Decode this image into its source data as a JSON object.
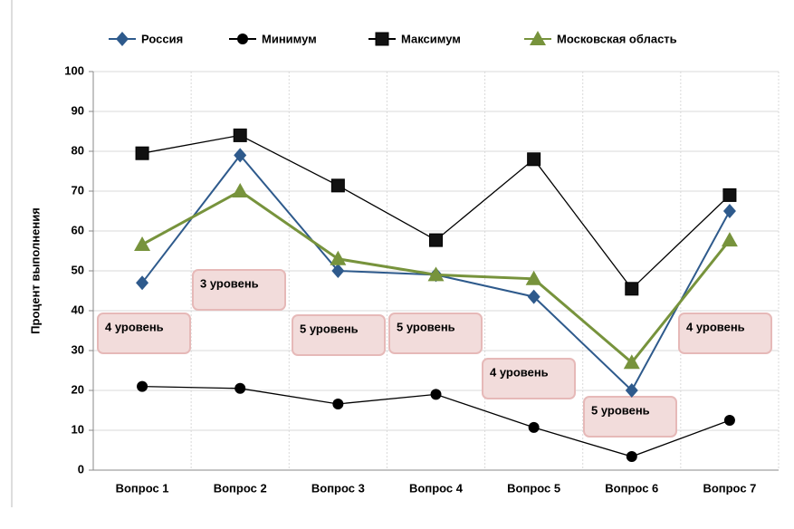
{
  "chart_data": {
    "type": "line",
    "y_label": "Процент выполнения",
    "categories": [
      "Вопрос 1",
      "Вопрос 2",
      "Вопрос 3",
      "Вопрос 4",
      "Вопрос 5",
      "Вопрос 6",
      "Вопрос 7"
    ],
    "series": [
      {
        "name": "Россия",
        "color": "#2e5a8c",
        "marker": "diamond",
        "values": [
          47,
          79,
          50,
          49,
          43.5,
          20,
          65
        ]
      },
      {
        "name": "Минимум",
        "color": "#000000",
        "marker": "circle",
        "values": [
          21,
          20.5,
          16.6,
          19,
          10.7,
          3.4,
          12.5
        ]
      },
      {
        "name": "Максимум",
        "color": "#000000",
        "marker": "square",
        "values": [
          79.5,
          84,
          71.4,
          57.7,
          78,
          45.5,
          69
        ]
      },
      {
        "name": "Московская область",
        "color": "#77933c",
        "marker": "triangle",
        "values": [
          56.6,
          70,
          53,
          49,
          48,
          27,
          57.7
        ]
      }
    ],
    "annotations": [
      "4 уровень",
      "3 уровень",
      "5 уровень",
      "5 уровень",
      "4 уровень",
      "5 уровень",
      "4 уровень"
    ],
    "ylim": [
      0,
      100
    ],
    "yticks": [
      0,
      10,
      20,
      30,
      40,
      50,
      60,
      70,
      80,
      90,
      100
    ],
    "grid": true,
    "legend": "top"
  }
}
